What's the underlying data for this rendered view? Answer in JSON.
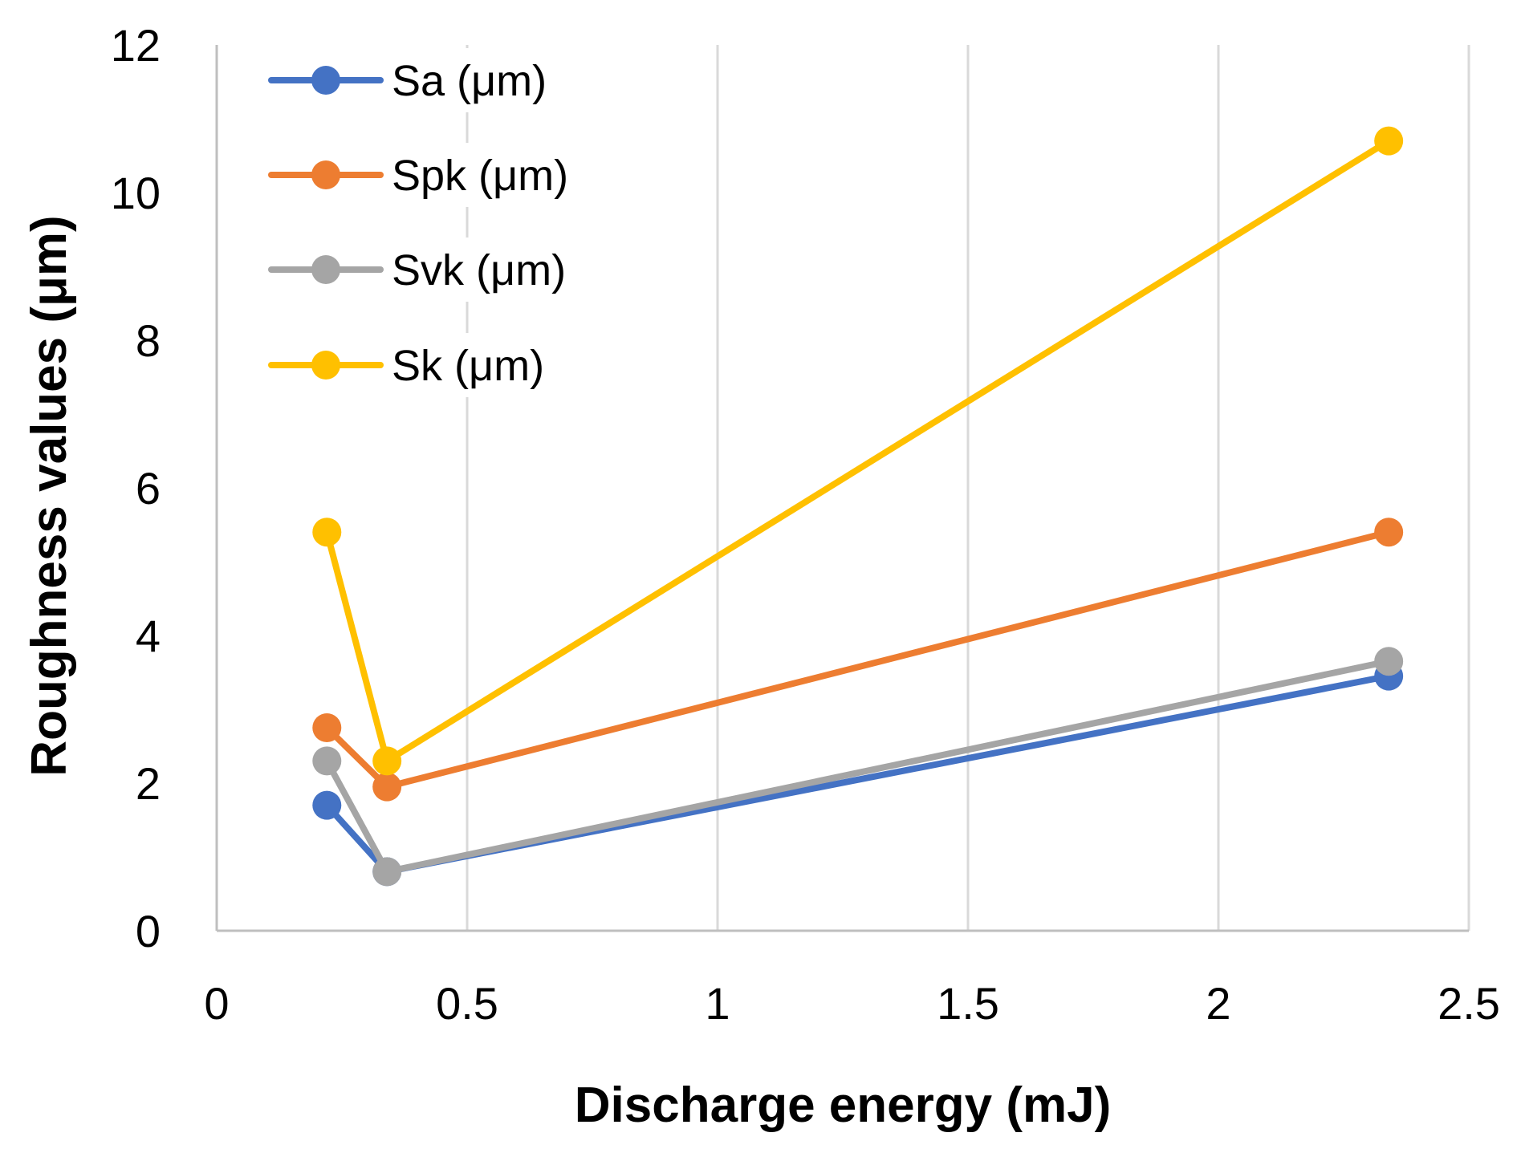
{
  "chart_data": {
    "type": "line",
    "title": "",
    "xlabel": "Discharge energy (mJ)",
    "ylabel": "Roughness values (μm)",
    "xlim": [
      0,
      2.5
    ],
    "ylim": [
      0,
      12
    ],
    "x_ticks": [
      "0",
      "0.5",
      "1",
      "1.5",
      "2",
      "2.5"
    ],
    "y_ticks": [
      "0",
      "2",
      "4",
      "6",
      "8",
      "10",
      "12"
    ],
    "grid": {
      "vertical": true,
      "horizontal": false
    },
    "legend_position": "top-left",
    "x": [
      0.22,
      0.34,
      2.34
    ],
    "series": [
      {
        "name": "Sa (μm)",
        "color": "#4472C4",
        "values": [
          1.7,
          0.8,
          3.45
        ]
      },
      {
        "name": "Spk (μm)",
        "color": "#ED7D31",
        "values": [
          2.75,
          1.95,
          5.4
        ]
      },
      {
        "name": "Svk (μm)",
        "color": "#A5A5A5",
        "values": [
          2.3,
          0.8,
          3.65
        ]
      },
      {
        "name": "Sk (μm)",
        "color": "#FFC000",
        "values": [
          5.4,
          2.3,
          10.7
        ]
      }
    ]
  }
}
